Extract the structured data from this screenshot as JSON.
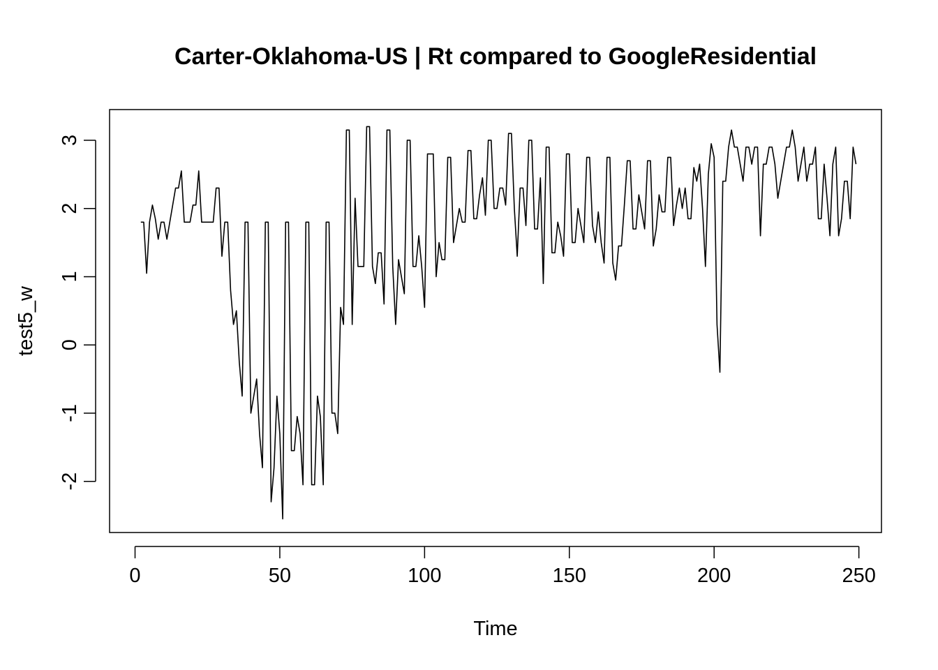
{
  "chart_data": {
    "type": "line",
    "title": "Carter-Oklahoma-US | Rt compared to GoogleResidential",
    "xlabel": "Time",
    "ylabel": "test5_w",
    "xlim": [
      -8.8,
      257.8
    ],
    "ylim": [
      -2.75,
      3.45
    ],
    "x_ticks": [
      "0",
      "50",
      "100",
      "150",
      "200",
      "250"
    ],
    "y_ticks": [
      "-2",
      "-1",
      "0",
      "1",
      "2",
      "3"
    ],
    "grid": false,
    "legend": "none",
    "line_color": "#000000",
    "series": [
      {
        "x_start": 2,
        "values": [
          1.8,
          1.8,
          1.05,
          1.8,
          2.05,
          1.85,
          1.55,
          1.8,
          1.8,
          1.55,
          1.8,
          2.05,
          2.3,
          2.3,
          2.55,
          1.8,
          1.8,
          1.8,
          2.05,
          2.05,
          2.55,
          1.8,
          1.8,
          1.8,
          1.8,
          1.8,
          2.3,
          2.3,
          1.3,
          1.8,
          1.8,
          0.8,
          0.3,
          0.5,
          -0.25,
          -0.75,
          1.8,
          1.8,
          -1.0,
          -0.75,
          -0.5,
          -1.3,
          -1.8,
          1.8,
          1.8,
          -2.3,
          -1.8,
          -0.75,
          -1.3,
          -2.55,
          1.8,
          1.8,
          -1.55,
          -1.55,
          -1.05,
          -1.3,
          -2.05,
          1.8,
          1.8,
          -2.05,
          -2.05,
          -0.75,
          -1.05,
          -2.05,
          1.8,
          1.8,
          -1.0,
          -1.0,
          -1.3,
          0.55,
          0.3,
          3.15,
          3.15,
          0.3,
          2.15,
          1.15,
          1.15,
          1.15,
          3.2,
          3.2,
          1.15,
          0.9,
          1.35,
          1.35,
          0.6,
          3.15,
          3.15,
          1.15,
          0.3,
          1.25,
          1.0,
          0.75,
          3.0,
          3.0,
          1.15,
          1.15,
          1.6,
          1.15,
          0.55,
          2.8,
          2.8,
          2.8,
          1.0,
          1.5,
          1.25,
          1.25,
          2.75,
          2.75,
          1.5,
          1.75,
          2.0,
          1.8,
          1.8,
          2.85,
          2.85,
          1.85,
          1.85,
          2.2,
          2.45,
          1.9,
          3.0,
          3.0,
          2.0,
          2.0,
          2.3,
          2.3,
          2.05,
          3.1,
          3.1,
          2.0,
          1.3,
          2.3,
          2.3,
          1.75,
          3.0,
          3.0,
          1.7,
          1.7,
          2.45,
          0.9,
          2.9,
          2.9,
          1.35,
          1.35,
          1.8,
          1.6,
          1.3,
          2.8,
          2.8,
          1.5,
          1.5,
          2.0,
          1.75,
          1.5,
          2.75,
          2.75,
          1.75,
          1.5,
          1.95,
          1.5,
          1.2,
          2.75,
          2.75,
          1.2,
          0.95,
          1.45,
          1.45,
          2.05,
          2.7,
          2.7,
          1.7,
          1.7,
          2.2,
          1.95,
          1.7,
          2.7,
          2.7,
          1.45,
          1.7,
          2.2,
          1.95,
          1.95,
          2.75,
          2.75,
          1.75,
          2.05,
          2.3,
          2.0,
          2.3,
          1.85,
          1.85,
          2.6,
          2.4,
          2.65,
          2.0,
          1.15,
          2.5,
          2.95,
          2.75,
          0.3,
          -0.4,
          2.4,
          2.4,
          2.9,
          3.15,
          2.9,
          2.9,
          2.65,
          2.4,
          2.9,
          2.9,
          2.65,
          2.9,
          2.9,
          1.6,
          2.65,
          2.65,
          2.9,
          2.9,
          2.65,
          2.15,
          2.4,
          2.65,
          2.9,
          2.9,
          3.15,
          2.9,
          2.4,
          2.65,
          2.9,
          2.4,
          2.65,
          2.65,
          2.9,
          1.85,
          1.85,
          2.65,
          2.15,
          1.6,
          2.65,
          2.9,
          1.6,
          1.85,
          2.4,
          2.4,
          1.85,
          2.9,
          2.65
        ]
      }
    ]
  }
}
